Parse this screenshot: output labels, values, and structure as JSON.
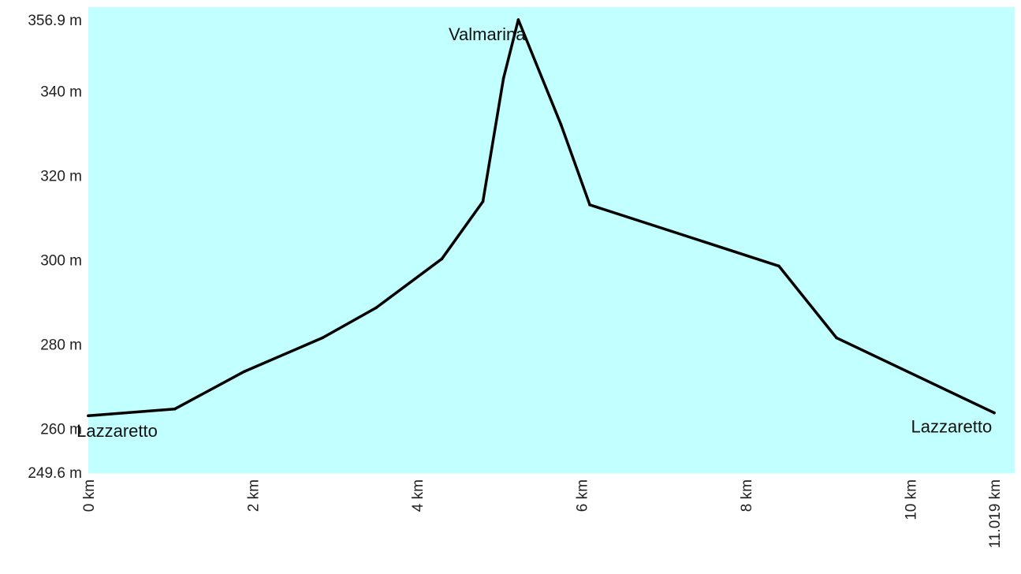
{
  "chart_data": {
    "type": "area",
    "title": "",
    "xlabel": "",
    "ylabel": "",
    "xlim": [
      0,
      11.019
    ],
    "ylim": [
      249.6,
      356.9
    ],
    "x_unit": "km",
    "y_unit": "m",
    "grid": false,
    "colors": {
      "fill": "#c2ffff",
      "line": "#000000"
    },
    "y_ticks": [
      {
        "value": 249.6,
        "label": "249.6 m"
      },
      {
        "value": 260,
        "label": "260 m"
      },
      {
        "value": 280,
        "label": "280 m"
      },
      {
        "value": 300,
        "label": "300 m"
      },
      {
        "value": 320,
        "label": "320 m"
      },
      {
        "value": 340,
        "label": "340 m"
      },
      {
        "value": 356.9,
        "label": "356.9 m"
      }
    ],
    "x_ticks": [
      {
        "value": 0,
        "label": "0 km"
      },
      {
        "value": 2,
        "label": "2 km"
      },
      {
        "value": 4,
        "label": "4 km"
      },
      {
        "value": 6,
        "label": "6 km"
      },
      {
        "value": 8,
        "label": "8 km"
      },
      {
        "value": 10,
        "label": "10 km"
      },
      {
        "value": 11.019,
        "label": "11.019 km"
      }
    ],
    "series": [
      {
        "x": [
          0,
          1.05,
          1.9,
          2.85,
          3.5,
          4.3,
          4.8,
          5.05,
          5.23,
          5.75,
          6.1,
          8.4,
          9.1,
          11.019
        ],
        "values": [
          263,
          264.6,
          273.5,
          281.5,
          288.6,
          300.2,
          313.8,
          343,
          356.9,
          332,
          313,
          298.5,
          281.5,
          263.7
        ]
      }
    ],
    "annotations": [
      {
        "text": "Valmarina",
        "x": 4.85,
        "y": 352
      },
      {
        "text": "Lazzaretto",
        "x": 0.35,
        "y": 258
      },
      {
        "text": "Lazzaretto",
        "x": 10.5,
        "y": 259
      }
    ]
  }
}
